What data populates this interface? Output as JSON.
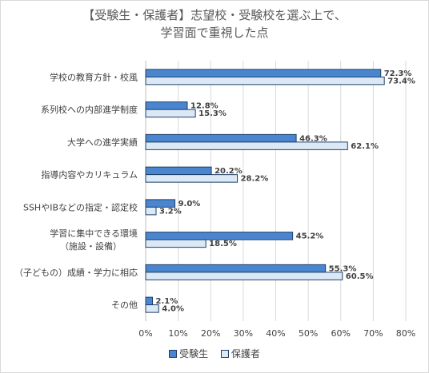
{
  "chart_data": {
    "type": "bar",
    "orientation": "horizontal",
    "title_lines": [
      "【受験生・保護者】志望校・受験校を選ぶ上で、",
      "学習面で重視した点"
    ],
    "categories": [
      [
        "学校の教育方針・校風"
      ],
      [
        "系列校への内部進学制度"
      ],
      [
        "大学への進学実績"
      ],
      [
        "指導内容やカリキュラム"
      ],
      [
        "SSHやIBなどの指定・認定校"
      ],
      [
        "学習に集中できる環境",
        "（施設・設備）"
      ],
      [
        "（子どもの）成績・学力に相応"
      ],
      [
        "その他"
      ]
    ],
    "series": [
      {
        "name": "受験生",
        "values": [
          72.3,
          12.8,
          46.3,
          20.2,
          9.0,
          45.2,
          55.3,
          2.1
        ],
        "labels": [
          "72.3%",
          "12.8%",
          "46.3%",
          "20.2%",
          "9.0%",
          "45.2%",
          "55.3%",
          "2.1%"
        ],
        "color": "#4a86d0",
        "stroke": "#1f3f66"
      },
      {
        "name": "保護者",
        "values": [
          73.4,
          15.3,
          62.1,
          28.2,
          3.2,
          18.5,
          60.5,
          4.0
        ],
        "labels": [
          "73.4%",
          "15.3%",
          "62.1%",
          "28.2%",
          "3.2%",
          "18.5%",
          "60.5%",
          "4.0%"
        ],
        "color": "#dbe9f7",
        "stroke": "#1f3f66"
      }
    ],
    "xlim": [
      0,
      80
    ],
    "xticks": [
      "0%",
      "10%",
      "20%",
      "30%",
      "40%",
      "50%",
      "60%",
      "70%",
      "80%"
    ],
    "grid": true,
    "legend_position": "bottom"
  }
}
